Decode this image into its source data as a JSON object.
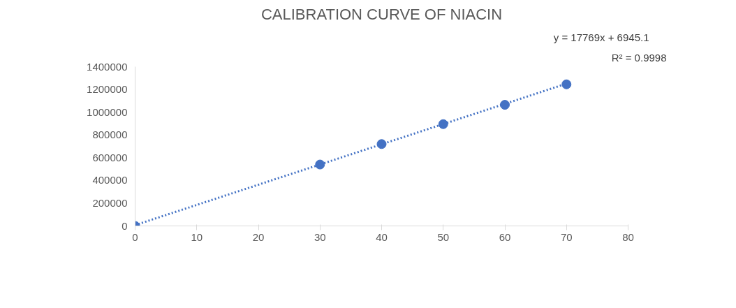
{
  "chart_data": {
    "type": "scatter",
    "title": "CALIBRATION CURVE OF NIACIN",
    "x": [
      0,
      30,
      40,
      50,
      60,
      70
    ],
    "series": [
      {
        "color": "#4472c4",
        "marker": "circle",
        "values": [
          0,
          540000,
          720000,
          895000,
          1065000,
          1245000
        ]
      },
      {
        "type": "line",
        "color": "#4472c4",
        "line_style": "dotted",
        "x": [
          0,
          70
        ],
        "values": [
          7000,
          1251000
        ]
      }
    ],
    "xlim": [
      0,
      80
    ],
    "xticks": [
      0,
      10,
      20,
      30,
      40,
      50,
      60,
      70,
      80
    ],
    "ylim": [
      0,
      1400000
    ],
    "yticks": [
      0,
      200000,
      400000,
      600000,
      800000,
      1000000,
      1200000,
      1400000
    ],
    "grid": false,
    "annotations": [
      "y = 17769x + 6945.1",
      "R² = 0.9998"
    ]
  }
}
